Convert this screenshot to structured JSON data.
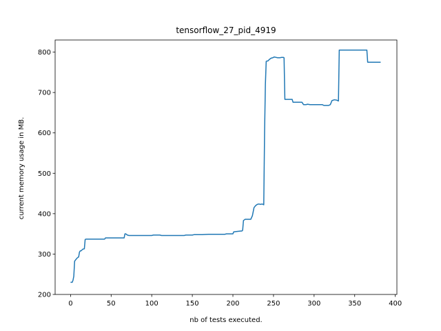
{
  "chart_data": {
    "type": "line",
    "title": "tensorflow_27_pid_4919",
    "xlabel": "nb of tests executed.",
    "ylabel": "current memory usage in MB.",
    "xlim": [
      -19,
      402
    ],
    "ylim": [
      200,
      830
    ],
    "xticks": [
      0,
      50,
      100,
      150,
      200,
      250,
      300,
      350,
      400
    ],
    "yticks": [
      200,
      300,
      400,
      500,
      600,
      700,
      800
    ],
    "grid": false,
    "line_color": "#1f77b4",
    "series": [
      {
        "x": [
          0,
          2,
          3,
          4,
          5,
          6,
          8,
          10,
          11,
          12,
          13,
          15,
          17,
          18,
          19,
          30,
          42,
          43,
          55,
          66,
          67,
          68,
          70,
          72,
          80,
          100,
          102,
          110,
          112,
          120,
          130,
          140,
          142,
          150,
          152,
          160,
          162,
          170,
          180,
          190,
          192,
          200,
          201,
          205,
          210,
          211,
          212,
          213,
          215,
          220,
          222,
          224,
          226,
          228,
          230,
          232,
          234,
          236,
          238,
          239,
          240,
          241,
          242,
          243,
          245,
          247,
          249,
          251,
          253,
          255,
          258,
          260,
          262,
          263,
          264,
          266,
          268,
          270,
          273,
          274,
          276,
          280,
          285,
          287,
          288,
          290,
          292,
          295,
          300,
          305,
          310,
          312,
          315,
          318,
          320,
          322,
          325,
          328,
          330,
          331,
          333,
          340,
          350,
          360,
          365,
          366,
          370,
          375,
          380,
          382
        ],
        "y": [
          230,
          230,
          235,
          245,
          282,
          285,
          290,
          293,
          305,
          308,
          308,
          312,
          313,
          336,
          337,
          337,
          337,
          340,
          340,
          340,
          350,
          350,
          347,
          346,
          346,
          346,
          347,
          347,
          346,
          346,
          346,
          346,
          347,
          347,
          348,
          348,
          348,
          349,
          349,
          349,
          350,
          350,
          355,
          356,
          357,
          357,
          359,
          383,
          386,
          386,
          386,
          395,
          415,
          420,
          423,
          424,
          423,
          424,
          422,
          600,
          720,
          777,
          778,
          778,
          782,
          785,
          786,
          788,
          787,
          786,
          786,
          787,
          787,
          786,
          683,
          683,
          683,
          683,
          683,
          676,
          676,
          676,
          676,
          670,
          670,
          670,
          671,
          670,
          670,
          670,
          670,
          668,
          668,
          668,
          670,
          680,
          682,
          681,
          679,
          805,
          805,
          805,
          805,
          805,
          805,
          775,
          775,
          775,
          775,
          775
        ]
      }
    ]
  }
}
